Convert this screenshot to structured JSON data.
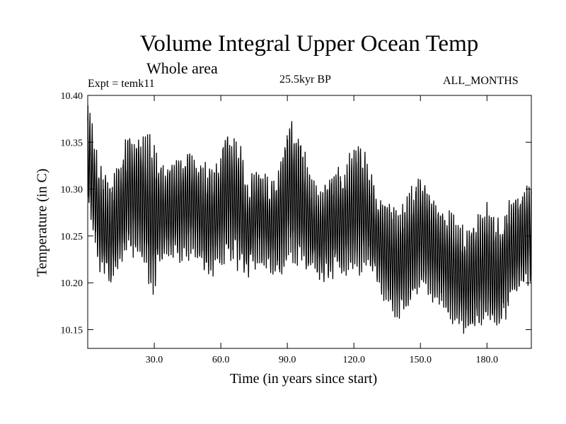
{
  "chart_data": {
    "type": "line",
    "title": "Volume Integral Upper Ocean Temp",
    "subtitle": "Whole area",
    "experiment_label": "Expt = temk11",
    "period_label": "25.5kyr BP",
    "months_label": "ALL_MONTHS",
    "xlabel": "Time (in years since start)",
    "ylabel": "Temperature (in C)",
    "xlim": [
      0,
      200
    ],
    "ylim": [
      10.13,
      10.4
    ],
    "xticks": [
      30,
      60,
      90,
      120,
      150,
      180
    ],
    "xtick_labels": [
      "30.0",
      "60.0",
      "90.0",
      "120.0",
      "150.0",
      "180.0"
    ],
    "yticks": [
      10.15,
      10.2,
      10.25,
      10.3,
      10.35,
      10.4
    ],
    "ytick_labels": [
      "10.15",
      "10.20",
      "10.25",
      "10.30",
      "10.35",
      "10.40"
    ],
    "grid": false,
    "series": [
      {
        "name": "Temperature",
        "line_color": "#000000",
        "samples_per_year": 12,
        "envelope_x": [
          0,
          5,
          10,
          14,
          19,
          24,
          29,
          34,
          39,
          44,
          48,
          53,
          58,
          63,
          68,
          72,
          77,
          82,
          86,
          91,
          95,
          100,
          105,
          110,
          115,
          120,
          125,
          130,
          135,
          140,
          145,
          150,
          155,
          160,
          165,
          170,
          175,
          180,
          185,
          190,
          195,
          200
        ],
        "envelope_min": [
          10.28,
          10.21,
          10.19,
          10.21,
          10.23,
          10.22,
          10.18,
          10.22,
          10.22,
          10.22,
          10.23,
          10.2,
          10.21,
          10.22,
          10.21,
          10.2,
          10.22,
          10.21,
          10.2,
          10.22,
          10.21,
          10.21,
          10.2,
          10.2,
          10.21,
          10.2,
          10.21,
          10.2,
          10.17,
          10.16,
          10.17,
          10.19,
          10.18,
          10.17,
          10.15,
          10.14,
          10.15,
          10.15,
          10.14,
          10.17,
          10.19,
          10.2
        ],
        "envelope_max": [
          10.4,
          10.33,
          10.31,
          10.33,
          10.37,
          10.36,
          10.36,
          10.33,
          10.33,
          10.35,
          10.34,
          10.33,
          10.33,
          10.37,
          10.36,
          10.31,
          10.33,
          10.31,
          10.33,
          10.38,
          10.37,
          10.32,
          10.3,
          10.33,
          10.32,
          10.36,
          10.34,
          10.3,
          10.29,
          10.28,
          10.3,
          10.32,
          10.3,
          10.28,
          10.28,
          10.26,
          10.27,
          10.29,
          10.27,
          10.29,
          10.3,
          10.31
        ]
      }
    ]
  }
}
